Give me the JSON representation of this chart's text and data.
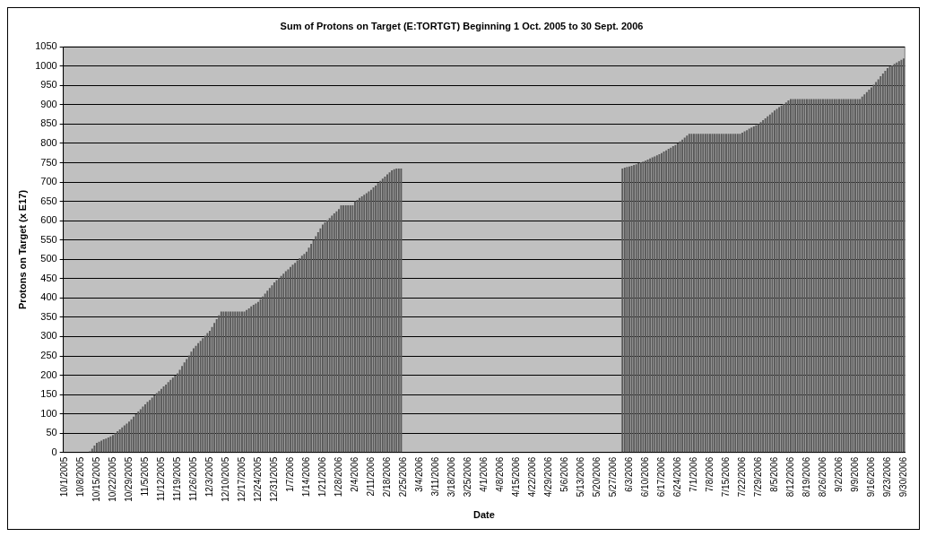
{
  "chart_data": {
    "type": "bar",
    "title": "Sum of Protons on Target (E:TORTGT) Beginning 1 Oct. 2005 to 30 Sept. 2006",
    "xlabel": "Date",
    "ylabel": "Protons on Target (x E17)",
    "categories": [
      "10/1/2005",
      null,
      null,
      null,
      null,
      null,
      null,
      "10/8/2005",
      null,
      null,
      null,
      null,
      null,
      null,
      "10/15/2005",
      null,
      null,
      null,
      null,
      null,
      null,
      "10/22/2005",
      null,
      null,
      null,
      null,
      null,
      null,
      "10/29/2005",
      null,
      null,
      null,
      null,
      null,
      null,
      "11/5/2005",
      null,
      null,
      null,
      null,
      null,
      null,
      "11/12/2005",
      null,
      null,
      null,
      null,
      null,
      null,
      "11/19/2005",
      null,
      null,
      null,
      null,
      null,
      null,
      "11/26/2005",
      null,
      null,
      null,
      null,
      null,
      null,
      "12/3/2005",
      null,
      null,
      null,
      null,
      null,
      null,
      "12/10/2005",
      null,
      null,
      null,
      null,
      null,
      null,
      "12/17/2005",
      null,
      null,
      null,
      null,
      null,
      null,
      "12/24/2005",
      null,
      null,
      null,
      null,
      null,
      null,
      "12/31/2005",
      null,
      null,
      null,
      null,
      null,
      null,
      "1/7/2006",
      null,
      null,
      null,
      null,
      null,
      null,
      "1/14/2006",
      null,
      null,
      null,
      null,
      null,
      null,
      "1/21/2006",
      null,
      null,
      null,
      null,
      null,
      null,
      "1/28/2006",
      null,
      null,
      null,
      null,
      null,
      null,
      "2/4/2006",
      null,
      null,
      null,
      null,
      null,
      null,
      "2/11/2006",
      null,
      null,
      null,
      null,
      null,
      null,
      "2/18/2006",
      null,
      null,
      null,
      null,
      null,
      null,
      "2/25/2006",
      null,
      null,
      null,
      null,
      null,
      null,
      "3/4/2006",
      null,
      null,
      null,
      null,
      null,
      null,
      "3/11/2006",
      null,
      null,
      null,
      null,
      null,
      null,
      "3/18/2006",
      null,
      null,
      null,
      null,
      null,
      null,
      "3/25/2006",
      null,
      null,
      null,
      null,
      null,
      null,
      "4/1/2006",
      null,
      null,
      null,
      null,
      null,
      null,
      "4/8/2006",
      null,
      null,
      null,
      null,
      null,
      null,
      "4/15/2006",
      null,
      null,
      null,
      null,
      null,
      null,
      "4/22/2006",
      null,
      null,
      null,
      null,
      null,
      null,
      "4/29/2006",
      null,
      null,
      null,
      null,
      null,
      null,
      "5/6/2006",
      null,
      null,
      null,
      null,
      null,
      null,
      "5/13/2006",
      null,
      null,
      null,
      null,
      null,
      null,
      "5/20/2006",
      null,
      null,
      null,
      null,
      null,
      null,
      "5/27/2006",
      null,
      null,
      null,
      null,
      null,
      null,
      "6/3/2006",
      null,
      null,
      null,
      null,
      null,
      null,
      "6/10/2006",
      null,
      null,
      null,
      null,
      null,
      null,
      "6/17/2006",
      null,
      null,
      null,
      null,
      null,
      null,
      "6/24/2006",
      null,
      null,
      null,
      null,
      null,
      null,
      "7/1/2006",
      null,
      null,
      null,
      null,
      null,
      null,
      "7/8/2006",
      null,
      null,
      null,
      null,
      null,
      null,
      "7/15/2006",
      null,
      null,
      null,
      null,
      null,
      null,
      "7/22/2006",
      null,
      null,
      null,
      null,
      null,
      null,
      "7/29/2006",
      null,
      null,
      null,
      null,
      null,
      null,
      "8/5/2006",
      null,
      null,
      null,
      null,
      null,
      null,
      "8/12/2006",
      null,
      null,
      null,
      null,
      null,
      null,
      "8/19/2006",
      null,
      null,
      null,
      null,
      null,
      null,
      "8/26/2006",
      null,
      null,
      null,
      null,
      null,
      null,
      "9/2/2006",
      null,
      null,
      null,
      null,
      null,
      null,
      "9/9/2006",
      null,
      null,
      null,
      null,
      null,
      null,
      "9/16/2006",
      null,
      null,
      null,
      null,
      null,
      null,
      "9/23/2006",
      null,
      null,
      null,
      null,
      null,
      null,
      "9/30/2006"
    ],
    "values": [
      0,
      0,
      0,
      0,
      0,
      0,
      0,
      0,
      0,
      0,
      0,
      3,
      10,
      18,
      25,
      28,
      31,
      34,
      36,
      39,
      42,
      45,
      50,
      55,
      60,
      65,
      70,
      75,
      80,
      86,
      93,
      99,
      106,
      112,
      119,
      125,
      131,
      136,
      142,
      148,
      154,
      159,
      165,
      171,
      176,
      182,
      188,
      194,
      199,
      205,
      214,
      224,
      233,
      242,
      251,
      261,
      270,
      276,
      283,
      289,
      296,
      302,
      309,
      315,
      325,
      335,
      345,
      355,
      365,
      365,
      365,
      365,
      365,
      365,
      365,
      365,
      365,
      365,
      365,
      369,
      373,
      378,
      382,
      386,
      390,
      397,
      404,
      411,
      419,
      426,
      433,
      440,
      446,
      451,
      457,
      463,
      469,
      474,
      480,
      486,
      491,
      497,
      503,
      509,
      514,
      520,
      530,
      540,
      550,
      560,
      570,
      580,
      590,
      596,
      601,
      607,
      613,
      619,
      624,
      630,
      640,
      640,
      640,
      640,
      640,
      640,
      650,
      654,
      659,
      663,
      667,
      671,
      676,
      680,
      686,
      691,
      697,
      703,
      709,
      714,
      720,
      725,
      730,
      733,
      735,
      735,
      735,
      null,
      null,
      null,
      null,
      null,
      null,
      null,
      null,
      null,
      null,
      null,
      null,
      null,
      null,
      null,
      null,
      null,
      null,
      null,
      null,
      null,
      null,
      null,
      null,
      null,
      null,
      null,
      null,
      null,
      null,
      null,
      null,
      null,
      null,
      null,
      null,
      null,
      null,
      null,
      null,
      null,
      null,
      null,
      null,
      null,
      null,
      null,
      null,
      null,
      null,
      null,
      null,
      null,
      null,
      null,
      null,
      null,
      null,
      null,
      null,
      null,
      null,
      null,
      null,
      null,
      null,
      null,
      null,
      null,
      null,
      null,
      null,
      null,
      null,
      null,
      null,
      null,
      null,
      null,
      null,
      null,
      null,
      null,
      null,
      null,
      null,
      null,
      null,
      null,
      null,
      null,
      null,
      null,
      null,
      null,
      735,
      737,
      739,
      740,
      742,
      744,
      746,
      749,
      751,
      753,
      755,
      758,
      761,
      764,
      766,
      769,
      772,
      775,
      779,
      782,
      786,
      789,
      793,
      796,
      800,
      805,
      810,
      815,
      820,
      825,
      825,
      825,
      825,
      825,
      825,
      825,
      825,
      825,
      825,
      825,
      825,
      825,
      825,
      825,
      825,
      825,
      825,
      825,
      825,
      825,
      825,
      825,
      828,
      831,
      834,
      838,
      841,
      844,
      847,
      850,
      855,
      860,
      865,
      870,
      875,
      880,
      885,
      889,
      894,
      898,
      902,
      906,
      911,
      915,
      915,
      915,
      915,
      915,
      915,
      915,
      915,
      915,
      915,
      915,
      915,
      915,
      915,
      915,
      915,
      915,
      915,
      915,
      915,
      915,
      915,
      915,
      915,
      915,
      915,
      915,
      915,
      915,
      915,
      915,
      921,
      927,
      933,
      939,
      945,
      952,
      959,
      966,
      974,
      981,
      988,
      995,
      999,
      1002,
      1006,
      1009,
      1013,
      1016,
      1020
    ],
    "color": "#5a5a5a",
    "ylim": [
      0,
      1050
    ],
    "yticks": [
      0,
      50,
      100,
      150,
      200,
      250,
      300,
      350,
      400,
      450,
      500,
      550,
      600,
      650,
      700,
      750,
      800,
      850,
      900,
      950,
      1000,
      1050
    ],
    "grid": "y",
    "legend": false
  }
}
